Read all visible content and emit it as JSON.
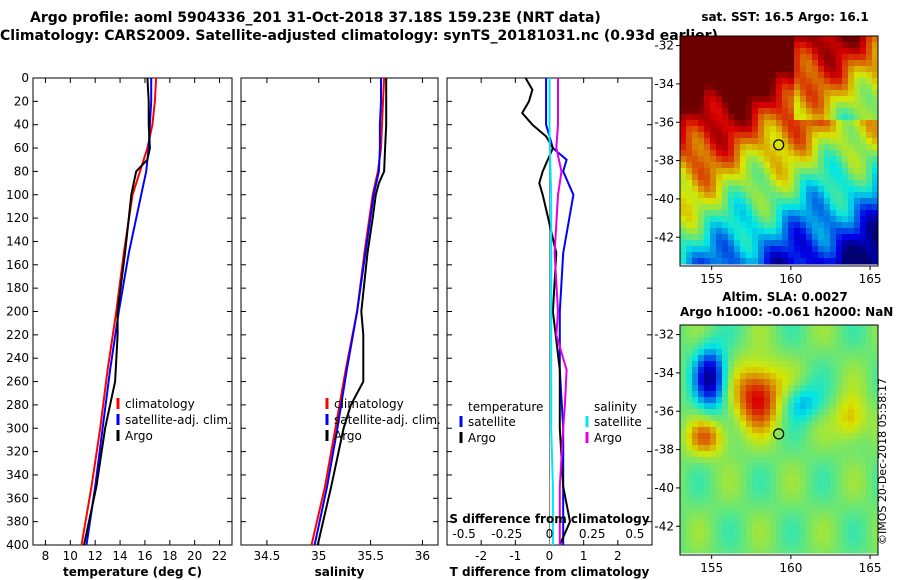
{
  "header": {
    "title_line1": "Argo profile: aoml 5904336_201 31-Oct-2018 37.18S 159.23E (NRT data)",
    "title_line2": "Climatology: CARS2009. Satellite-adjusted climatology: synTS_20181031.nc (0.93d earlier)"
  },
  "sst_map": {
    "title": "sat. SST: 16.5 Argo: 16.1",
    "lat_ticks": [
      "-32",
      "-34",
      "-36",
      "-38",
      "-40",
      "-42"
    ],
    "lon_ticks": [
      "155",
      "160",
      "165"
    ],
    "marker": {
      "lon": 159.23,
      "lat": -37.18
    }
  },
  "altim_map": {
    "title_line1": "Altim. SLA: 0.0027",
    "title_line2": "Argo h1000: -0.061 h2000: NaN",
    "lat_ticks": [
      "-32",
      "-34",
      "-36",
      "-38",
      "-40",
      "-42"
    ],
    "lon_ticks": [
      "155",
      "160",
      "165"
    ],
    "marker": {
      "lon": 159.23,
      "lat": -37.18
    }
  },
  "watermark": "©IMOS 20-Dec-2018 05:58:17",
  "colors": {
    "climatology": "#ff0000",
    "satellite": "#0000ff",
    "argo": "#000000",
    "sat_salinity": "#00e5ff",
    "argo_salinity": "#e000e0"
  },
  "chart_data": [
    {
      "type": "line",
      "xlabel": "temperature (deg C)",
      "ylabel": "",
      "xlim": [
        7,
        23
      ],
      "ylim": [
        400,
        0
      ],
      "x_ticks": [
        "8",
        "10",
        "12",
        "14",
        "16",
        "18",
        "20",
        "22"
      ],
      "y_ticks": [
        "0",
        "20",
        "40",
        "60",
        "80",
        "100",
        "120",
        "140",
        "160",
        "180",
        "200",
        "220",
        "240",
        "260",
        "280",
        "300",
        "320",
        "340",
        "360",
        "380",
        "400"
      ],
      "legend": [
        "climatology",
        "satellite-adj. clim.",
        "Argo"
      ],
      "series": [
        {
          "name": "climatology",
          "depth": [
            0,
            20,
            40,
            60,
            80,
            100,
            150,
            200,
            250,
            300,
            350,
            400
          ],
          "values": [
            16.9,
            16.8,
            16.6,
            16.2,
            15.6,
            15.0,
            14.3,
            13.7,
            13.0,
            12.4,
            11.7,
            10.9
          ]
        },
        {
          "name": "satellite-adj. clim.",
          "depth": [
            0,
            20,
            40,
            60,
            80,
            100,
            150,
            200,
            250,
            300,
            350,
            400
          ],
          "values": [
            16.5,
            16.5,
            16.4,
            16.3,
            16.1,
            15.7,
            14.7,
            13.9,
            13.2,
            12.6,
            12.0,
            11.3
          ]
        },
        {
          "name": "Argo",
          "depth": [
            0,
            20,
            40,
            60,
            70,
            80,
            90,
            100,
            120,
            150,
            200,
            220,
            260,
            280,
            300,
            350,
            400
          ],
          "values": [
            16.2,
            16.3,
            16.3,
            16.4,
            16.2,
            15.3,
            15.1,
            14.9,
            14.7,
            14.4,
            13.8,
            13.8,
            13.6,
            13.2,
            12.8,
            12.1,
            11.1
          ]
        }
      ]
    },
    {
      "type": "line",
      "xlabel": "salinity",
      "ylabel": "",
      "xlim": [
        34.25,
        36.15
      ],
      "ylim": [
        400,
        0
      ],
      "x_ticks": [
        "34.5",
        "35",
        "35.5",
        "36"
      ],
      "legend": [
        "climatology",
        "satellite-adj. clim.",
        "Argo"
      ],
      "series": [
        {
          "name": "climatology",
          "depth": [
            0,
            20,
            40,
            60,
            80,
            100,
            150,
            200,
            250,
            300,
            350,
            400
          ],
          "values": [
            35.63,
            35.62,
            35.61,
            35.6,
            35.57,
            35.52,
            35.44,
            35.37,
            35.26,
            35.16,
            35.06,
            34.93
          ]
        },
        {
          "name": "satellite-adj. clim.",
          "depth": [
            0,
            20,
            40,
            60,
            80,
            100,
            150,
            200,
            250,
            300,
            350,
            400
          ],
          "values": [
            35.6,
            35.6,
            35.59,
            35.59,
            35.58,
            35.53,
            35.45,
            35.37,
            35.27,
            35.18,
            35.08,
            34.96
          ]
        },
        {
          "name": "Argo",
          "depth": [
            0,
            20,
            40,
            60,
            80,
            90,
            100,
            120,
            150,
            200,
            220,
            260,
            280,
            300,
            350,
            400
          ],
          "values": [
            35.65,
            35.65,
            35.65,
            35.64,
            35.63,
            35.58,
            35.55,
            35.52,
            35.47,
            35.41,
            35.43,
            35.43,
            35.31,
            35.24,
            35.12,
            34.99
          ]
        }
      ]
    },
    {
      "type": "line",
      "xlabel": "T difference from climatology",
      "xlabel_top": "S difference from climatology",
      "ylabel": "",
      "xlim": [
        -3,
        3
      ],
      "ylim": [
        400,
        0
      ],
      "x_ticks": [
        "-2",
        "-1",
        "0",
        "1",
        "2"
      ],
      "x_ticks_top": [
        "-0.5",
        "-0.25",
        "0",
        "0.25",
        "0.5"
      ],
      "legend_temperature_heading": "temperature",
      "legend_temperature": [
        "satellite",
        "Argo"
      ],
      "legend_salinity_heading": "salinity",
      "legend_salinity": [
        "satellite",
        "Argo"
      ],
      "series": [
        {
          "name": "T satellite",
          "depth": [
            0,
            20,
            40,
            60,
            70,
            80,
            100,
            150,
            200,
            250,
            300,
            350,
            400
          ],
          "values": [
            -0.1,
            -0.1,
            -0.1,
            0.1,
            0.5,
            0.4,
            0.7,
            0.4,
            0.3,
            0.3,
            0.4,
            0.4,
            0.4
          ]
        },
        {
          "name": "T Argo",
          "depth": [
            0,
            10,
            20,
            30,
            40,
            50,
            60,
            80,
            90,
            100,
            150,
            200,
            250,
            300,
            350,
            380,
            400
          ],
          "values": [
            -0.7,
            -0.5,
            -0.6,
            -0.8,
            -0.5,
            -0.1,
            0.1,
            -0.2,
            -0.3,
            -0.2,
            0.2,
            0.1,
            0.3,
            0.3,
            0.4,
            0.6,
            0.3
          ]
        },
        {
          "name": "S satellite",
          "depth": [
            0,
            50,
            100,
            150,
            200,
            250,
            300,
            350,
            400
          ],
          "values": [
            0.0,
            0.0,
            0.01,
            0.01,
            0.01,
            0.01,
            0.01,
            0.02,
            0.02
          ]
        },
        {
          "name": "S Argo",
          "depth": [
            0,
            20,
            40,
            60,
            80,
            100,
            150,
            200,
            220,
            250,
            280,
            300,
            350,
            400
          ],
          "values": [
            0.05,
            0.05,
            0.05,
            0.04,
            0.07,
            0.05,
            0.03,
            0.05,
            0.04,
            0.1,
            0.09,
            0.08,
            0.06,
            0.06
          ]
        }
      ]
    }
  ]
}
